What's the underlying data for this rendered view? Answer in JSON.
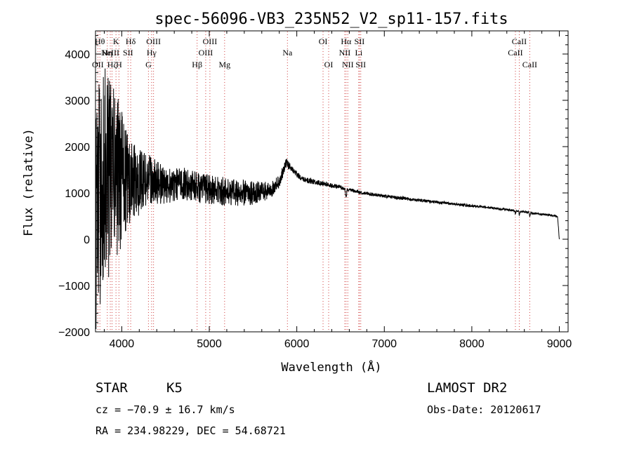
{
  "chart_data": {
    "type": "line",
    "title": "spec-56096-VB3_235N52_V2_sp11-157.fits",
    "xlabel": "Wavelength (Å)",
    "ylabel": "Flux (relative)",
    "xlim": [
      3700,
      9100
    ],
    "ylim": [
      -2000,
      4500
    ],
    "x_ticks": [
      4000,
      5000,
      6000,
      7000,
      8000,
      9000
    ],
    "y_ticks": [
      -2000,
      -1000,
      0,
      1000,
      2000,
      3000,
      4000
    ],
    "x_tick_labels": [
      "4000",
      "5000",
      "6000",
      "7000",
      "8000",
      "9000"
    ],
    "y_tick_labels": [
      "−2000",
      "−1000",
      "0",
      "1000",
      "2000",
      "3000",
      "4000"
    ],
    "spectrum_anchors": [
      [
        3700,
        500
      ],
      [
        3800,
        1400
      ],
      [
        3950,
        1350
      ],
      [
        4100,
        1200
      ],
      [
        4300,
        1300
      ],
      [
        4500,
        1150
      ],
      [
        4700,
        1200
      ],
      [
        4900,
        1100
      ],
      [
        5100,
        1050
      ],
      [
        5300,
        1000
      ],
      [
        5500,
        1000
      ],
      [
        5700,
        1050
      ],
      [
        5800,
        1250
      ],
      [
        5880,
        1650
      ],
      [
        5930,
        1550
      ],
      [
        6050,
        1300
      ],
      [
        6300,
        1200
      ],
      [
        6500,
        1120
      ],
      [
        6700,
        1020
      ],
      [
        7000,
        930
      ],
      [
        7500,
        820
      ],
      [
        8000,
        720
      ],
      [
        8500,
        620
      ],
      [
        8700,
        560
      ],
      [
        8950,
        510
      ],
      [
        8980,
        480
      ],
      [
        9000,
        0
      ]
    ],
    "spectrum_noise": [
      [
        3700,
        2600
      ],
      [
        3900,
        2100
      ],
      [
        4000,
        1500
      ],
      [
        4100,
        900
      ],
      [
        4300,
        550
      ],
      [
        4500,
        380
      ],
      [
        5000,
        330
      ],
      [
        5500,
        260
      ],
      [
        5800,
        140
      ],
      [
        5950,
        70
      ],
      [
        6500,
        40
      ],
      [
        8000,
        28
      ],
      [
        9000,
        20
      ]
    ],
    "absorption_dips": [
      {
        "wavelength": 6563,
        "depth": 200,
        "width": 8
      },
      {
        "wavelength": 8498,
        "depth": 60,
        "width": 6
      },
      {
        "wavelength": 8542,
        "depth": 80,
        "width": 6
      },
      {
        "wavelength": 8662,
        "depth": 70,
        "width": 6
      }
    ],
    "spectral_lines": [
      {
        "label": "OII",
        "wavelength": 3727,
        "row": 3
      },
      {
        "label": "Hθ",
        "wavelength": 3750,
        "row": 1
      },
      {
        "label": "Hη",
        "wavelength": 3835,
        "row": 2
      },
      {
        "label": "Hζ",
        "wavelength": 3889,
        "row": 3
      },
      {
        "label": "NeIII",
        "wavelength": 3869,
        "row": 2
      },
      {
        "label": "K",
        "wavelength": 3934,
        "row": 1
      },
      {
        "label": "H",
        "wavelength": 3968,
        "row": 3
      },
      {
        "label": "SII",
        "wavelength": 4072,
        "row": 2
      },
      {
        "label": "Hδ",
        "wavelength": 4102,
        "row": 1
      },
      {
        "label": "G",
        "wavelength": 4305,
        "row": 3
      },
      {
        "label": "Hγ",
        "wavelength": 4341,
        "row": 2
      },
      {
        "label": "OIII",
        "wavelength": 4363,
        "row": 1
      },
      {
        "label": "Hβ",
        "wavelength": 4861,
        "row": 3
      },
      {
        "label": "OIII",
        "wavelength": 4959,
        "row": 2
      },
      {
        "label": "OIII",
        "wavelength": 5007,
        "row": 1
      },
      {
        "label": "Mg",
        "wavelength": 5175,
        "row": 3
      },
      {
        "label": "Na",
        "wavelength": 5893,
        "row": 2
      },
      {
        "label": "OI",
        "wavelength": 6300,
        "row": 1
      },
      {
        "label": "OI",
        "wavelength": 6364,
        "row": 3
      },
      {
        "label": "NII",
        "wavelength": 6548,
        "row": 2
      },
      {
        "label": "Hα",
        "wavelength": 6563,
        "row": 1
      },
      {
        "label": "NII",
        "wavelength": 6583,
        "row": 3
      },
      {
        "label": "Li",
        "wavelength": 6708,
        "row": 2
      },
      {
        "label": "SII",
        "wavelength": 6716,
        "row": 1
      },
      {
        "label": "SII",
        "wavelength": 6731,
        "row": 3
      },
      {
        "label": "CaII",
        "wavelength": 8498,
        "row": 2
      },
      {
        "label": "CaII",
        "wavelength": 8542,
        "row": 1
      },
      {
        "label": "CaII",
        "wavelength": 8662,
        "row": 3
      }
    ]
  },
  "info": {
    "class": "STAR",
    "subclass": "K5",
    "cz": "cz = −70.9 ± 16.7 km/s",
    "coords": "RA = 234.98229, DEC =  54.68721",
    "survey": "LAMOST DR2",
    "obs_date": "Obs-Date: 20120617"
  },
  "colors": {
    "spectrum": "#000000",
    "line_markers": "#d04040",
    "axis": "#000000"
  }
}
